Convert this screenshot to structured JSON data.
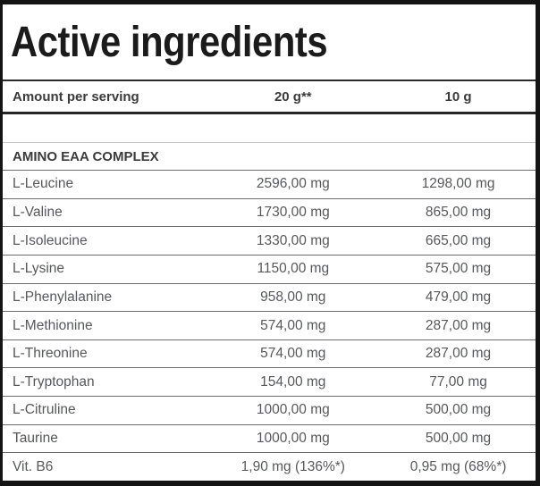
{
  "title": "Active ingredients",
  "header": {
    "amount_label": "Amount per serving",
    "serving_large": "20 g**",
    "serving_small": "10 g"
  },
  "section": "AMINO EAA COMPLEX",
  "rows": [
    {
      "name": "L-Leucine",
      "per20g": "2596,00 mg",
      "per10g": "1298,00 mg"
    },
    {
      "name": "L-Valine",
      "per20g": "1730,00 mg",
      "per10g": "865,00 mg"
    },
    {
      "name": "L-Isoleucine",
      "per20g": "1330,00 mg",
      "per10g": "665,00 mg"
    },
    {
      "name": "L-Lysine",
      "per20g": "1150,00 mg",
      "per10g": "575,00 mg"
    },
    {
      "name": "L-Phenylalanine",
      "per20g": "958,00 mg",
      "per10g": "479,00 mg"
    },
    {
      "name": "L-Methionine",
      "per20g": "574,00 mg",
      "per10g": "287,00 mg"
    },
    {
      "name": "L-Threonine",
      "per20g": "574,00 mg",
      "per10g": "287,00 mg"
    },
    {
      "name": "L-Tryptophan",
      "per20g": "154,00 mg",
      "per10g": "77,00 mg"
    },
    {
      "name": "L-Citruline",
      "per20g": "1000,00 mg",
      "per10g": "500,00 mg"
    },
    {
      "name": "Taurine",
      "per20g": "1000,00 mg",
      "per10g": "500,00 mg"
    },
    {
      "name": "Vit. B6",
      "per20g": "1,90 mg (136%*)",
      "per10g": "0,95 mg (68%*)"
    }
  ],
  "colors": {
    "frame_border": "#141414",
    "dark_line": "#262626",
    "light_line": "#c8c8c8",
    "row_line": "#6d6d6d",
    "title_text": "#1b1b1b",
    "bold_text": "#3b3b3b",
    "row_text": "#57585a",
    "background": "#ffffff"
  }
}
